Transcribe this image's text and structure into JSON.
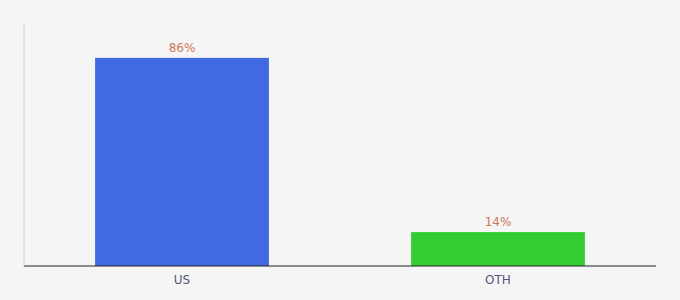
{
  "chart_data": {
    "type": "bar",
    "categories": [
      "US",
      "OTH"
    ],
    "values": [
      86,
      14
    ],
    "colors": [
      "#4169e1",
      "#33cc33"
    ],
    "value_labels": [
      "86%",
      "14%"
    ],
    "data_labels": true,
    "ylim": [
      0,
      100
    ],
    "tick_labels": "x",
    "grid": false
  }
}
